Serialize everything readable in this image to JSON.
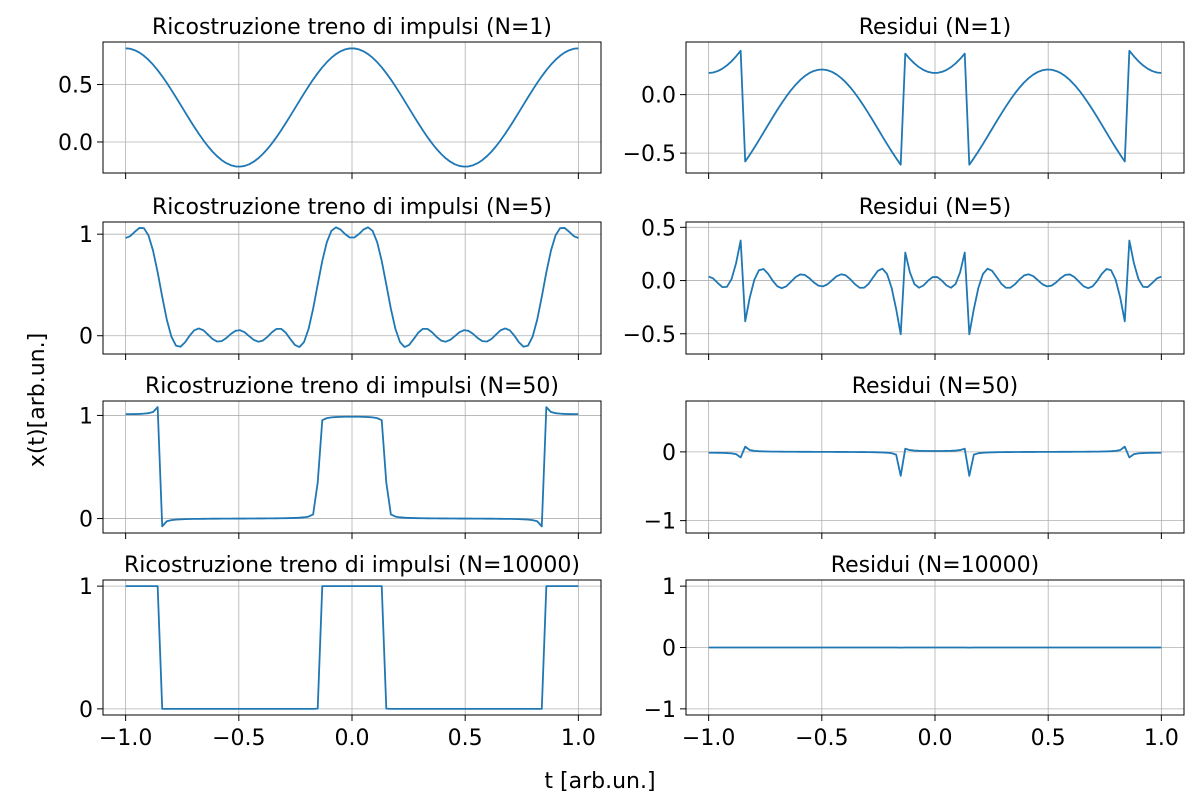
{
  "figure": {
    "xlabel": "t  [arb.un.]",
    "ylabel": "x(t)[arb.un.]"
  },
  "chart_data": [
    {
      "type": "line",
      "title": "Ricostruzione treno di impulsi (N=1)",
      "N": 1,
      "kind": "reconstruction",
      "xlim": [
        -1.1,
        1.1
      ],
      "ylim": [
        -0.27,
        0.87
      ],
      "xticks": [
        -1.0,
        -0.5,
        0.0,
        0.5,
        1.0
      ],
      "xtick_labels": [
        "−1.0",
        "−0.5",
        "0.0",
        "0.5",
        "1.0"
      ],
      "yticks": [
        0.0,
        0.5
      ],
      "ytick_labels": [
        "0.0",
        "0.5"
      ],
      "show_xtick_labels": false,
      "grid": true,
      "series_color": "#1f77b4"
    },
    {
      "type": "line",
      "title": "Residui (N=1)",
      "N": 1,
      "kind": "residual",
      "xlim": [
        -1.1,
        1.1
      ],
      "ylim": [
        -0.67,
        0.45
      ],
      "xticks": [
        -1.0,
        -0.5,
        0.0,
        0.5,
        1.0
      ],
      "xtick_labels": [
        "−1.0",
        "−0.5",
        "0.0",
        "0.5",
        "1.0"
      ],
      "yticks": [
        -0.5,
        0.0
      ],
      "ytick_labels": [
        "−0.5",
        "0.0"
      ],
      "show_xtick_labels": false,
      "grid": true,
      "series_color": "#1f77b4"
    },
    {
      "type": "line",
      "title": "Ricostruzione treno di impulsi (N=5)",
      "N": 5,
      "kind": "reconstruction",
      "xlim": [
        -1.1,
        1.1
      ],
      "ylim": [
        -0.18,
        1.12
      ],
      "xticks": [
        -1.0,
        -0.5,
        0.0,
        0.5,
        1.0
      ],
      "xtick_labels": [
        "−1.0",
        "−0.5",
        "0.0",
        "0.5",
        "1.0"
      ],
      "yticks": [
        0,
        1
      ],
      "ytick_labels": [
        "0",
        "1"
      ],
      "show_xtick_labels": false,
      "grid": true,
      "series_color": "#1f77b4"
    },
    {
      "type": "line",
      "title": "Residui (N=5)",
      "N": 5,
      "kind": "residual",
      "xlim": [
        -1.1,
        1.1
      ],
      "ylim": [
        -0.69,
        0.55
      ],
      "xticks": [
        -1.0,
        -0.5,
        0.0,
        0.5,
        1.0
      ],
      "xtick_labels": [
        "−1.0",
        "−0.5",
        "0.0",
        "0.5",
        "1.0"
      ],
      "yticks": [
        -0.5,
        0.0,
        0.5
      ],
      "ytick_labels": [
        "−0.5",
        "0.0",
        "0.5"
      ],
      "show_xtick_labels": false,
      "grid": true,
      "series_color": "#1f77b4"
    },
    {
      "type": "line",
      "title": "Ricostruzione treno di impulsi (N=50)",
      "N": 50,
      "kind": "reconstruction",
      "xlim": [
        -1.1,
        1.1
      ],
      "ylim": [
        -0.14,
        1.14
      ],
      "xticks": [
        -1.0,
        -0.5,
        0.0,
        0.5,
        1.0
      ],
      "xtick_labels": [
        "−1.0",
        "−0.5",
        "0.0",
        "0.5",
        "1.0"
      ],
      "yticks": [
        0,
        1
      ],
      "ytick_labels": [
        "0",
        "1"
      ],
      "show_xtick_labels": false,
      "grid": true,
      "series_color": "#1f77b4"
    },
    {
      "type": "line",
      "title": "Residui (N=50)",
      "N": 50,
      "kind": "residual",
      "xlim": [
        -1.1,
        1.1
      ],
      "ylim": [
        -1.18,
        0.74
      ],
      "xticks": [
        -1.0,
        -0.5,
        0.0,
        0.5,
        1.0
      ],
      "xtick_labels": [
        "−1.0",
        "−0.5",
        "0.0",
        "0.5",
        "1.0"
      ],
      "yticks": [
        -1,
        0
      ],
      "ytick_labels": [
        "−1",
        "0"
      ],
      "show_xtick_labels": false,
      "grid": true,
      "series_color": "#1f77b4"
    },
    {
      "type": "line",
      "title": "Ricostruzione treno di impulsi (N=10000)",
      "N": 10000,
      "kind": "reconstruction",
      "xlim": [
        -1.1,
        1.1
      ],
      "ylim": [
        -0.05,
        1.05
      ],
      "xticks": [
        -1.0,
        -0.5,
        0.0,
        0.5,
        1.0
      ],
      "xtick_labels": [
        "−1.0",
        "−0.5",
        "0.0",
        "0.5",
        "1.0"
      ],
      "yticks": [
        0,
        1
      ],
      "ytick_labels": [
        "0",
        "1"
      ],
      "show_xtick_labels": true,
      "grid": true,
      "series_color": "#1f77b4"
    },
    {
      "type": "line",
      "title": "Residui (N=10000)",
      "N": 10000,
      "kind": "residual",
      "xlim": [
        -1.1,
        1.1
      ],
      "ylim": [
        -1.1,
        1.1
      ],
      "xticks": [
        -1.0,
        -0.5,
        0.0,
        0.5,
        1.0
      ],
      "xtick_labels": [
        "−1.0",
        "−0.5",
        "0.0",
        "0.5",
        "1.0"
      ],
      "yticks": [
        -1,
        0,
        1
      ],
      "ytick_labels": [
        "−1",
        "0",
        "1"
      ],
      "show_xtick_labels": true,
      "grid": true,
      "series_color": "#1f77b4"
    }
  ]
}
